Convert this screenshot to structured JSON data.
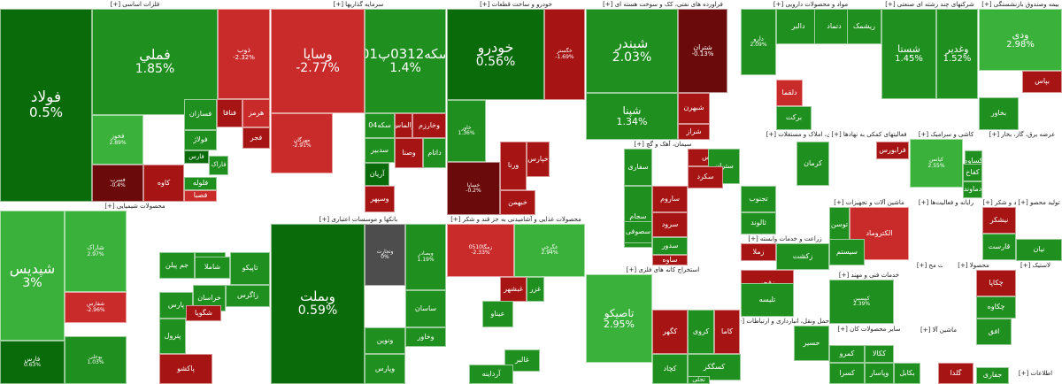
{
  "colors": {
    "pos_strong": "#0a6b0a",
    "pos": "#1f8f1f",
    "pos_light": "#3ab13a",
    "neg_strong": "#6a0a0a",
    "neg": "#a61414",
    "neg_light": "#c92a2a",
    "neutral": "#4d4d4d"
  },
  "chart_data": {
    "type": "treemap",
    "title": "",
    "sectors": [
      {
        "title": "فلزات اساسی [+]"
      },
      {
        "title": "سرمایه گذاریها [+]"
      },
      {
        "title": "خودرو و ساخت قطعات [+]"
      },
      {
        "title": "فراورده های نفتی، کک و سوخت هسته ای [+]"
      },
      {
        "title": "مواد و محصولات دارویی [+]"
      },
      {
        "title": "شرکتهای چند رشته ای صنعتی [+]"
      },
      {
        "title": "بیمه وصندوق بازنشستگی [+]"
      },
      {
        "title": "محصولات شیمیایی [+]"
      },
      {
        "title": "بانکها و موسسات اعتباری [+]"
      },
      {
        "title": "محصولات غذایی و آشامیدنی به جز قند و شکر [+]"
      },
      {
        "title": "سیمان، آهک و گچ [+]"
      },
      {
        "title": "استخراج کانه های فلزی [+]"
      },
      {
        "title": "انبوه سازی، املاک و مستغلات [+]"
      },
      {
        "title": "فعالیتهای کمکی به نهادها [+]"
      },
      {
        "title": "کاشی و سرامیک [+]"
      },
      {
        "title": "عرضه برق، گاز، بخار [+]"
      },
      {
        "title": "ماشین آلات و تجهیزات [+]"
      },
      {
        "title": "رایانه و فعالیت‌ها [+]"
      },
      {
        "title": "قند و شکر [+]"
      },
      {
        "title": "تولید محصو [+]"
      },
      {
        "title": "زراعت و خدمات وابسته [+]"
      },
      {
        "title": "ساخت مح [+]"
      },
      {
        "title": "محصولا [+]"
      },
      {
        "title": "لاستیک [+]"
      },
      {
        "title": "خدمات فنی و مهند [+]"
      },
      {
        "title": "حمل ونقل، انبارداری و ارتباطات [+]"
      },
      {
        "title": "سایر محصولات کان [+]"
      },
      {
        "title": "ماشین آلا [+]"
      },
      {
        "title": "هتل و [+]"
      },
      {
        "title": "اطلاعات [+]"
      }
    ],
    "tiles": [
      {
        "symbol": "فولاد",
        "change": "0.5%",
        "change_value": 0.5
      },
      {
        "symbol": "فملي",
        "change": "1.85%",
        "change_value": 1.85
      },
      {
        "symbol": "ذوب",
        "change": "-2.32%",
        "change_value": -2.32
      },
      {
        "symbol": "فخوز",
        "change": "2.89%",
        "change_value": 2.89
      },
      {
        "symbol": "فسازان",
        "change": "",
        "change_value": 1
      },
      {
        "symbol": "فنافا",
        "change": "",
        "change_value": -1.5
      },
      {
        "symbol": "هرمز",
        "change": "",
        "change_value": -2
      },
      {
        "symbol": "فجر",
        "change": "",
        "change_value": -1
      },
      {
        "symbol": "فولاژ",
        "change": "",
        "change_value": 1
      },
      {
        "symbol": "فارس",
        "change": "",
        "change_value": 0.5
      },
      {
        "symbol": "فلوله",
        "change": "",
        "change_value": 1.5
      },
      {
        "symbol": "فاراک",
        "change": "",
        "change_value": 1
      },
      {
        "symbol": "کاوه",
        "change": "",
        "change_value": -1.5
      },
      {
        "symbol": "فصبا",
        "change": "",
        "change_value": -2
      },
      {
        "symbol": "فسرب",
        "change": "-0.4%",
        "change_value": -0.4
      },
      {
        "symbol": "وسایا",
        "change": "-2.77%",
        "change_value": -2.77
      },
      {
        "symbol": "سکه0312پ01",
        "change": "1.4%",
        "change_value": 1.4
      },
      {
        "symbol": "مهرگان",
        "change": "-2.91%",
        "change_value": -2.91
      },
      {
        "symbol": "وخارزم",
        "change": "",
        "change_value": -1
      },
      {
        "symbol": "والماس",
        "change": "",
        "change_value": -1.5
      },
      {
        "symbol": "سکه04",
        "change": "",
        "change_value": 1
      },
      {
        "symbol": "داتام",
        "change": "",
        "change_value": 1.2
      },
      {
        "symbol": "وصنا",
        "change": "",
        "change_value": -1.2
      },
      {
        "symbol": "سدبیر",
        "change": "",
        "change_value": 1.5
      },
      {
        "symbol": "آریان",
        "change": "",
        "change_value": 0.8
      },
      {
        "symbol": "وسپهر",
        "change": "",
        "change_value": -1.5
      },
      {
        "symbol": "وبملت",
        "change": "0.59%",
        "change_value": 0.59
      },
      {
        "symbol": "وتجارت",
        "change": "0%",
        "change_value": 0
      },
      {
        "symbol": "وبصادر",
        "change": "1.19%",
        "change_value": 1.19
      },
      {
        "symbol": "ساسان",
        "change": "",
        "change_value": 1
      },
      {
        "symbol": "وخاور",
        "change": "",
        "change_value": 1.2
      },
      {
        "symbol": "ونوین",
        "change": "",
        "change_value": 1.5
      },
      {
        "symbol": "وپارس",
        "change": "",
        "change_value": 1
      },
      {
        "symbol": "خودرو",
        "change": "0.56%",
        "change_value": 0.56
      },
      {
        "symbol": "خگستر",
        "change": "-1.69%",
        "change_value": -1.69
      },
      {
        "symbol": "خاور",
        "change": "1.36%",
        "change_value": 1.36
      },
      {
        "symbol": "خساپا",
        "change": "-0.2%",
        "change_value": -0.2
      },
      {
        "symbol": "ورنا",
        "change": "",
        "change_value": -1.5
      },
      {
        "symbol": "خپارس",
        "change": "",
        "change_value": -1
      },
      {
        "symbol": "خبهمن",
        "change": "",
        "change_value": -1.5
      },
      {
        "symbol": "شبندر",
        "change": "2.03%",
        "change_value": 2.03
      },
      {
        "symbol": "شتران",
        "change": "-0.13%",
        "change_value": -0.13
      },
      {
        "symbol": "شپنا",
        "change": "1.34%",
        "change_value": 1.34
      },
      {
        "symbol": "شبهرن",
        "change": "",
        "change_value": -1.5
      },
      {
        "symbol": "شراز",
        "change": "",
        "change_value": -1
      },
      {
        "symbol": "دارو",
        "change": "2.09%",
        "change_value": 2.09
      },
      {
        "symbol": "دالبر",
        "change": "",
        "change_value": 1
      },
      {
        "symbol": "دتماد",
        "change": "",
        "change_value": 1.5
      },
      {
        "symbol": "دلقما",
        "change": "",
        "change_value": -2
      },
      {
        "symbol": "برکت",
        "change": "",
        "change_value": 1.5
      },
      {
        "symbol": "ریشمک",
        "change": "",
        "change_value": 1.5
      },
      {
        "symbol": "شستا",
        "change": "1.45%",
        "change_value": 1.45
      },
      {
        "symbol": "وغدیر",
        "change": "1.52%",
        "change_value": 1.52
      },
      {
        "symbol": "ودی",
        "change": "2.98%",
        "change_value": 2.98
      },
      {
        "symbol": "بپاس",
        "change": "",
        "change_value": -1.5
      },
      {
        "symbol": "بخاور",
        "change": "",
        "change_value": 1
      },
      {
        "symbol": "شپديس",
        "change": "3%",
        "change_value": 3
      },
      {
        "symbol": "شاراک",
        "change": "2.97%",
        "change_value": 2.97
      },
      {
        "symbol": "فارس",
        "change": "0.63%",
        "change_value": 0.63
      },
      {
        "symbol": "شفارس",
        "change": "-2.96%",
        "change_value": -2.96
      },
      {
        "symbol": "جم پیلن",
        "change": "",
        "change_value": 1.5
      },
      {
        "symbol": "شیراز",
        "change": "",
        "change_value": 1.2
      },
      {
        "symbol": "شاملا",
        "change": "",
        "change_value": 1
      },
      {
        "symbol": "تاپیکو",
        "change": "",
        "change_value": 1
      },
      {
        "symbol": "زاگرس",
        "change": "",
        "change_value": 1.5
      },
      {
        "symbol": "خراسان",
        "change": "",
        "change_value": 1
      },
      {
        "symbol": "پارس",
        "change": "",
        "change_value": 1
      },
      {
        "symbol": "شگویا",
        "change": "",
        "change_value": -1.5
      },
      {
        "symbol": "پترول",
        "change": "",
        "change_value": 1
      },
      {
        "symbol": "پاکشو",
        "change": "",
        "change_value": -1.5
      },
      {
        "symbol": "بوعلی",
        "change": "1.03%",
        "change_value": 1.03
      },
      {
        "symbol": "زمگا0510",
        "change": "-2.33%",
        "change_value": -2.33
      },
      {
        "symbol": "غگرجي",
        "change": "2.94%",
        "change_value": 2.94
      },
      {
        "symbol": "غبشهر",
        "change": "",
        "change_value": -1.5
      },
      {
        "symbol": "غزر",
        "change": "",
        "change_value": 1
      },
      {
        "symbol": "عیناو",
        "change": "",
        "change_value": 1
      },
      {
        "symbol": "غالبر",
        "change": "",
        "change_value": 1.2
      },
      {
        "symbol": "آرداینه",
        "change": "",
        "change_value": 1
      },
      {
        "symbol": "ساروم",
        "change": "",
        "change_value": -1.5
      },
      {
        "symbol": "سفارس",
        "change": "",
        "change_value": -1.5
      },
      {
        "symbol": "ستران",
        "change": "",
        "change_value": 1.5
      },
      {
        "symbol": "سجام",
        "change": "",
        "change_value": 1
      },
      {
        "symbol": "سفاری",
        "change": "",
        "change_value": 1.2
      },
      {
        "symbol": "سصوفی",
        "change": "",
        "change_value": 1
      },
      {
        "symbol": "سکرد",
        "change": "",
        "change_value": -1.5
      },
      {
        "symbol": "سرود",
        "change": "",
        "change_value": -1
      },
      {
        "symbol": "سدور",
        "change": "",
        "change_value": 1.2
      },
      {
        "symbol": "ساوه",
        "change": "",
        "change_value": -1.5
      },
      {
        "symbol": "تاصیکو",
        "change": "2.95%",
        "change_value": 2.95
      },
      {
        "symbol": "کگهر",
        "change": "",
        "change_value": -1.5
      },
      {
        "symbol": "کروی",
        "change": "",
        "change_value": 1
      },
      {
        "symbol": "کچاد",
        "change": "",
        "change_value": 1.2
      },
      {
        "symbol": "کسگکر",
        "change": "",
        "change_value": 1.2
      },
      {
        "symbol": "کاما",
        "change": "",
        "change_value": -1
      },
      {
        "symbol": "تجلی",
        "change": "",
        "change_value": 1.5
      },
      {
        "symbol": "کرمان",
        "change": "",
        "change_value": 1.5
      },
      {
        "symbol": "تجنوب",
        "change": "",
        "change_value": 1.2
      },
      {
        "symbol": "ثالوند",
        "change": "",
        "change_value": 1.5
      },
      {
        "symbol": "فرابورس",
        "change": "",
        "change_value": -1.5
      },
      {
        "symbol": "کیانس",
        "change": "2.55%",
        "change_value": 2.55
      },
      {
        "symbol": "کساوه",
        "change": "",
        "change_value": 1
      },
      {
        "symbol": "کفاخ",
        "change": "",
        "change_value": 1.2
      },
      {
        "symbol": "دماوند",
        "change": "",
        "change_value": 1.2
      },
      {
        "symbol": "الکتروماد",
        "change": "",
        "change_value": -2
      },
      {
        "symbol": "توسن",
        "change": "",
        "change_value": 1.5
      },
      {
        "symbol": "سیستم",
        "change": "",
        "change_value": 1.5
      },
      {
        "symbol": "قشهد",
        "change": "",
        "change_value": 1
      },
      {
        "symbol": "قارست",
        "change": "",
        "change_value": 1
      },
      {
        "symbol": "نیشکر",
        "change": "",
        "change_value": -1.5
      },
      {
        "symbol": "نیان",
        "change": "",
        "change_value": 1.2
      },
      {
        "symbol": "زملا",
        "change": "",
        "change_value": -1.5
      },
      {
        "symbol": "زکشت",
        "change": "",
        "change_value": 1.5
      },
      {
        "symbol": "زفجر",
        "change": "",
        "change_value": -1.5
      },
      {
        "symbol": "تلیسه",
        "change": "",
        "change_value": 1.2
      },
      {
        "symbol": "کپیسین",
        "change": "2.39%",
        "change_value": 2.39
      },
      {
        "symbol": "حسیر",
        "change": "",
        "change_value": 1
      },
      {
        "symbol": "کمرو",
        "change": "",
        "change_value": 1.2
      },
      {
        "symbol": "ککالا",
        "change": "",
        "change_value": 1.2
      },
      {
        "symbol": "کسرا",
        "change": "",
        "change_value": 1
      },
      {
        "symbol": "بکابل",
        "change": "",
        "change_value": 1
      },
      {
        "symbol": "وپاسار",
        "change": "",
        "change_value": 1.2
      },
      {
        "symbol": "چکاپا",
        "change": "",
        "change_value": -1.5
      },
      {
        "symbol": "چکاوه",
        "change": "",
        "change_value": 1
      },
      {
        "symbol": "افق",
        "change": "",
        "change_value": 1.2
      },
      {
        "symbol": "گلدا",
        "change": "",
        "change_value": -1.5
      },
      {
        "symbol": "جفاری",
        "change": "",
        "change_value": 1.2
      }
    ]
  }
}
